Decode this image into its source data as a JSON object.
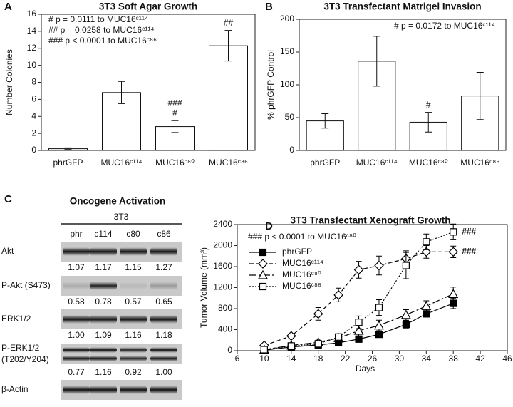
{
  "chart_data": [
    {
      "type": "bar",
      "panel": "A",
      "title": "3T3 Soft Agar Growth",
      "ylabel": "Number Colonies",
      "categories": [
        "phrGFP",
        "MUC16ᶜ¹¹⁴",
        "MUC16ᶜ⁸⁰",
        "MUC16ᶜ⁸⁶"
      ],
      "values": [
        0.2,
        6.8,
        2.8,
        12.3
      ],
      "errors": [
        0.1,
        1.3,
        0.7,
        1.8
      ],
      "color": "#ffffff",
      "ylim": [
        0,
        16
      ],
      "yticks": [
        0,
        2,
        4,
        6,
        8,
        10,
        12,
        14,
        16
      ],
      "bar_annotations": [
        null,
        null,
        [
          "###",
          "#"
        ],
        [
          "##"
        ]
      ],
      "annotations": [
        "# p = 0.0111 to MUC16ᶜ¹¹⁴",
        "## p = 0.0258 to MUC16ᶜ¹¹⁴",
        "### p < 0.0001 to MUC16ᶜ⁸⁶"
      ]
    },
    {
      "type": "bar",
      "panel": "B",
      "title": "3T3 Transfectant Matrigel Invasion",
      "ylabel": "% phrGFP Control",
      "categories": [
        "phrGFP",
        "MUC16ᶜ¹¹⁴",
        "MUC16ᶜ⁸⁰",
        "MUC16ᶜ⁸⁶"
      ],
      "values": [
        45,
        136,
        43,
        83
      ],
      "errors": [
        11,
        38,
        15,
        36
      ],
      "color": "#ffffff",
      "ylim": [
        0,
        200
      ],
      "yticks": [
        0,
        50,
        100,
        150,
        200
      ],
      "bar_annotations": [
        null,
        null,
        [
          "#"
        ],
        null
      ],
      "annotations": [
        "# p = 0.0172 to MUC16ᶜ¹¹⁴"
      ]
    },
    {
      "type": "line",
      "panel": "D",
      "title": "3T3 Transfectant Xenograft Growth",
      "xlabel": "Days",
      "ylabel": "Tumor Volume (mm³)",
      "x": [
        10,
        14,
        18,
        21,
        24,
        27,
        31,
        34,
        38
      ],
      "xlim": [
        6,
        46
      ],
      "xticks": [
        6,
        10,
        14,
        18,
        22,
        26,
        30,
        34,
        38,
        42,
        46
      ],
      "ylim": [
        0,
        2400
      ],
      "yticks": [
        0,
        400,
        800,
        1200,
        1600,
        2000,
        2400
      ],
      "annotations": [
        "### p < 0.0001 to MUC16ᶜ⁸⁰"
      ],
      "series": [
        {
          "name": "phrGFP",
          "color": "#000000",
          "marker": "square",
          "filled": true,
          "dash": "solid",
          "values": [
            10,
            70,
            110,
            150,
            220,
            310,
            500,
            700,
            900
          ],
          "errors": [
            10,
            20,
            20,
            30,
            40,
            50,
            70,
            50,
            100
          ]
        },
        {
          "name": "MUC16ᶜ¹¹⁴",
          "color": "#000000",
          "marker": "diamond",
          "filled": false,
          "dash": "dashed",
          "values": [
            100,
            280,
            700,
            1060,
            1540,
            1620,
            1750,
            1880,
            1880
          ],
          "errors": [
            30,
            40,
            120,
            130,
            160,
            180,
            150,
            120,
            110
          ],
          "end_label": "###"
        },
        {
          "name": "MUC16ᶜ⁸⁰",
          "color": "#000000",
          "marker": "triangle",
          "filled": false,
          "dash": "longdash",
          "values": [
            20,
            100,
            160,
            240,
            380,
            480,
            680,
            850,
            1080
          ],
          "errors": [
            20,
            30,
            40,
            60,
            100,
            100,
            100,
            100,
            130
          ]
        },
        {
          "name": "MUC16ᶜ⁸⁶",
          "color": "#000000",
          "marker": "square",
          "filled": false,
          "dash": "dotted",
          "values": [
            20,
            90,
            130,
            260,
            540,
            820,
            1620,
            2070,
            2260
          ],
          "errors": [
            20,
            30,
            40,
            60,
            120,
            150,
            250,
            150,
            150
          ],
          "end_label": "###"
        }
      ]
    }
  ],
  "blot": {
    "panel": "C",
    "title": "Oncogene Activation",
    "group": "3T3",
    "lanes": [
      "phr",
      "c114",
      "c80",
      "c86"
    ],
    "rows": [
      {
        "label": [
          "Akt"
        ],
        "values": [
          "1.07",
          "1.17",
          "1.15",
          "1.27"
        ]
      },
      {
        "label": [
          "P-Akt (S473)"
        ],
        "values": [
          "0.58",
          "0.78",
          "0.57",
          "0.65"
        ]
      },
      {
        "label": [
          "ERK1/2"
        ],
        "values": [
          "1.00",
          "1.09",
          "1.16",
          "1.18"
        ]
      },
      {
        "label": [
          "P-ERK1/2",
          "(T202/Y204)"
        ],
        "values": [
          "0.77",
          "1.16",
          "0.92",
          "1.00"
        ]
      },
      {
        "label": [
          "β-Actin"
        ]
      }
    ]
  }
}
